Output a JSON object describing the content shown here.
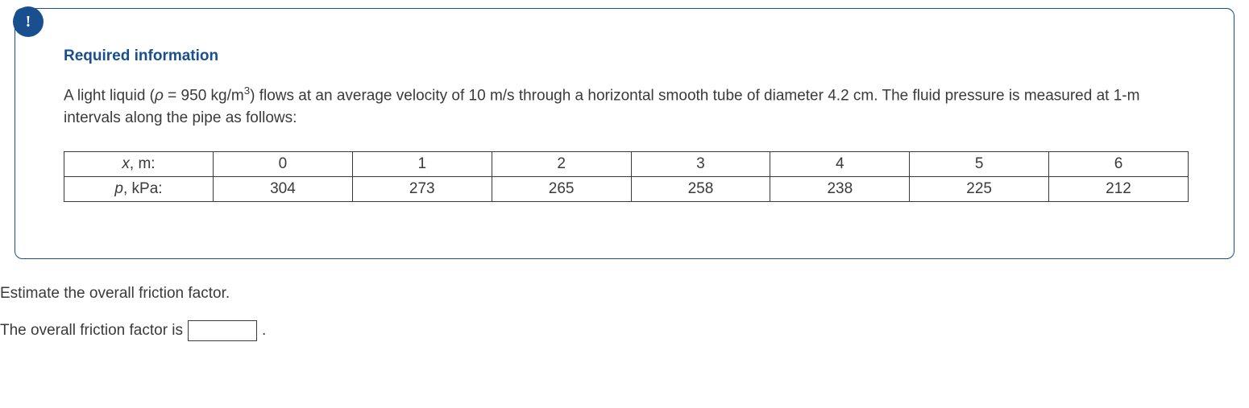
{
  "info": {
    "badge_char": "!",
    "heading": "Required information",
    "text_prefix": "A light liquid (",
    "rho_sym": "ρ",
    "text_eq": " = 950 kg/m",
    "text_exp": "3",
    "text_after": ") flows at an average velocity of 10 m/s through a horizontal smooth tube of diameter 4.2 cm. The fluid pressure is measured at 1-m intervals along the pipe as follows:"
  },
  "table": {
    "row_x_sym": "x",
    "row_x_suffix": ", m:",
    "row_p_sym": "p",
    "row_p_suffix": ", kPa:",
    "x": [
      "0",
      "1",
      "2",
      "3",
      "4",
      "5",
      "6"
    ],
    "p": [
      "304",
      "273",
      "265",
      "258",
      "238",
      "225",
      "212"
    ]
  },
  "question": {
    "prompt": "Estimate the overall friction factor.",
    "answer_label": "The overall friction factor is",
    "answer_value": "",
    "period": "."
  },
  "colors": {
    "brand": "#1a4f8f",
    "text": "#3a3a3a",
    "bg": "#ffffff",
    "border": "#3a3a3a"
  }
}
